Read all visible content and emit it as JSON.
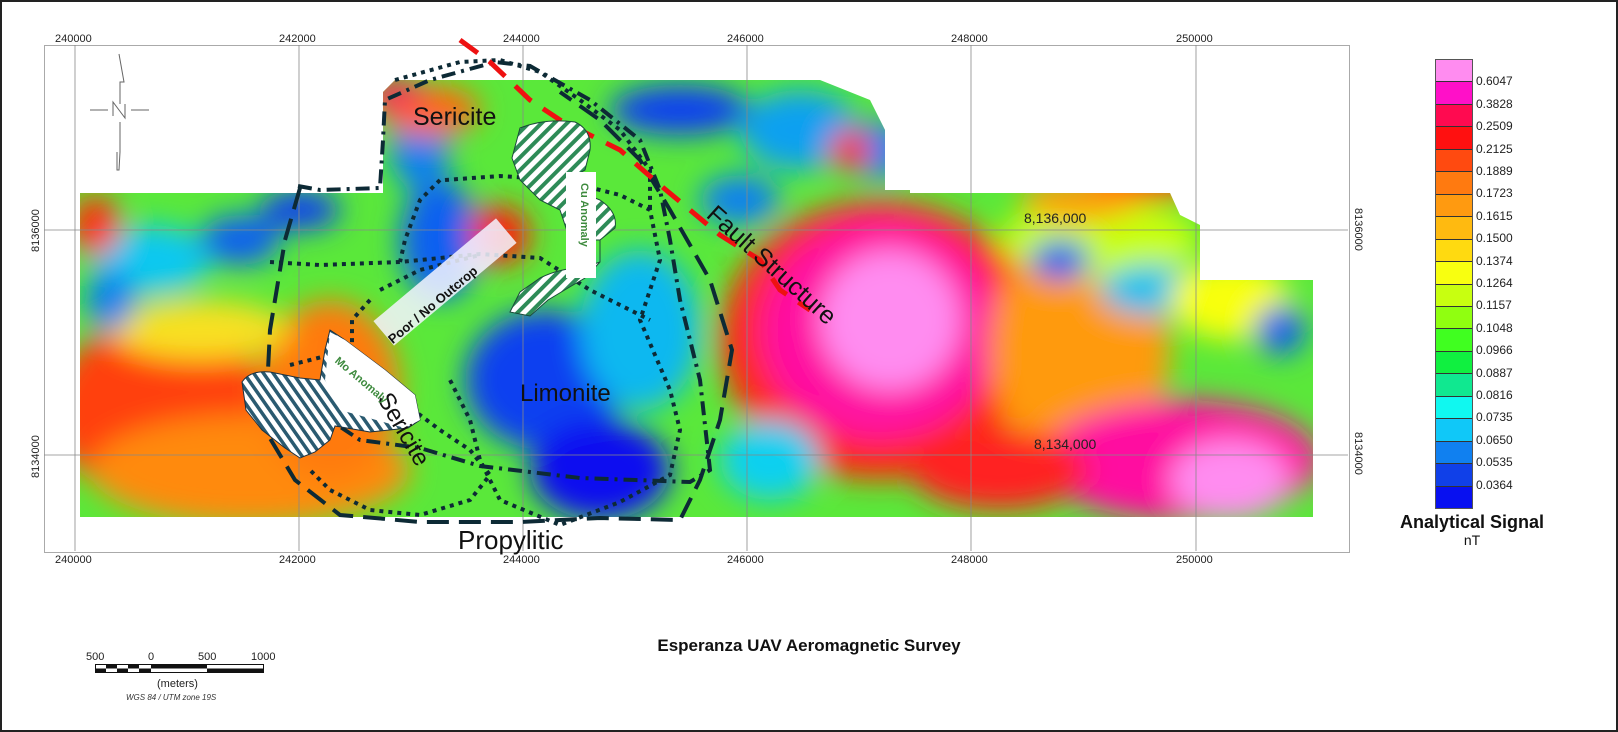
{
  "title": "Esperanza UAV Aeromagnetic Survey",
  "legend": {
    "title": "Analytical Signal",
    "unit": "nT",
    "breaks": [
      "0.6047",
      "0.3828",
      "0.2509",
      "0.2125",
      "0.1889",
      "0.1723",
      "0.1615",
      "0.1500",
      "0.1374",
      "0.1264",
      "0.1157",
      "0.1048",
      "0.0966",
      "0.0887",
      "0.0816",
      "0.0735",
      "0.0650",
      "0.0535",
      "0.0364"
    ],
    "colors": [
      "#ff8cf0",
      "#ff10c8",
      "#ff0a50",
      "#ff1010",
      "#ff4a10",
      "#ff7a10",
      "#ff9a10",
      "#ffba10",
      "#ffda10",
      "#f8ff10",
      "#c8ff10",
      "#90ff10",
      "#40ff20",
      "#10f040",
      "#10e890",
      "#10f8f0",
      "#10c8f8",
      "#1080f0",
      "#1040e8",
      "#0810f0"
    ]
  },
  "axes": {
    "x_ticks": [
      "240000",
      "242000",
      "244000",
      "246000",
      "248000",
      "250000"
    ],
    "y_ticks": [
      "8136000",
      "8134000"
    ],
    "inner_y_labels": [
      "8,136,000",
      "8,134,000"
    ]
  },
  "annotations": {
    "sericite_top": "Sericite",
    "sericite_mid": "Sericite",
    "limonite": "Limonite",
    "propylitic": "Propylitic",
    "fault": "Fault Structure",
    "poor_outcrop": "Poor / No Outcrop",
    "mo_anomaly": "Mo Anomaly",
    "cu_anomaly": "Cu Anomaly"
  },
  "scalebar": {
    "labels": [
      "500",
      "0",
      "500",
      "1000"
    ],
    "unit": "(meters)",
    "projection": "WGS 84 / UTM zone 19S"
  },
  "north_arrow": "N",
  "colors": {
    "fault": "#ee1111",
    "outline": "#0d2a35",
    "cu_hatch": "#2e8b57",
    "mo_hatch": "#2a5a70",
    "label_green": "#3d8a3d"
  }
}
